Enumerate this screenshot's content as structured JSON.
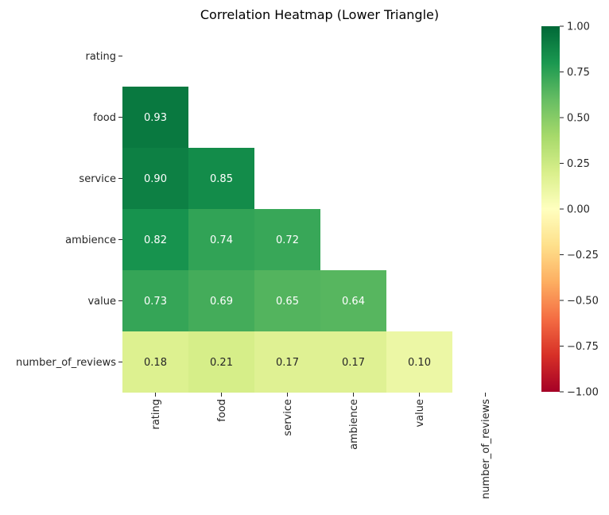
{
  "chart_data": {
    "type": "heatmap",
    "title": "Correlation Heatmap (Lower Triangle)",
    "row_labels": [
      "rating",
      "food",
      "service",
      "ambience",
      "value",
      "number_of_reviews"
    ],
    "col_labels": [
      "rating",
      "food",
      "service",
      "ambience",
      "value",
      "number_of_reviews"
    ],
    "values": [
      [
        null,
        null,
        null,
        null,
        null,
        null
      ],
      [
        0.93,
        null,
        null,
        null,
        null,
        null
      ],
      [
        0.9,
        0.85,
        null,
        null,
        null,
        null
      ],
      [
        0.82,
        0.74,
        0.72,
        null,
        null,
        null
      ],
      [
        0.73,
        0.69,
        0.65,
        0.64,
        null,
        null
      ],
      [
        0.18,
        0.21,
        0.17,
        0.17,
        0.1,
        null
      ]
    ],
    "annotations": [
      [
        null,
        null,
        null,
        null,
        null,
        null
      ],
      [
        "0.93",
        null,
        null,
        null,
        null,
        null
      ],
      [
        "0.90",
        "0.85",
        null,
        null,
        null,
        null
      ],
      [
        "0.82",
        "0.74",
        "0.72",
        null,
        null,
        null
      ],
      [
        "0.73",
        "0.69",
        "0.65",
        "0.64",
        null,
        null
      ],
      [
        "0.18",
        "0.21",
        "0.17",
        "0.17",
        "0.10",
        null
      ]
    ],
    "mask": "upper triangle incl. diagonal",
    "colormap": "RdYlGn",
    "vmin": -1.0,
    "vmax": 1.0,
    "colorbar_ticks": [
      "−1.00",
      "−0.75",
      "−0.50",
      "−0.25",
      "0.00",
      "0.25",
      "0.50",
      "0.75",
      "1.00"
    ],
    "grid": false,
    "legend": "colorbar right"
  }
}
